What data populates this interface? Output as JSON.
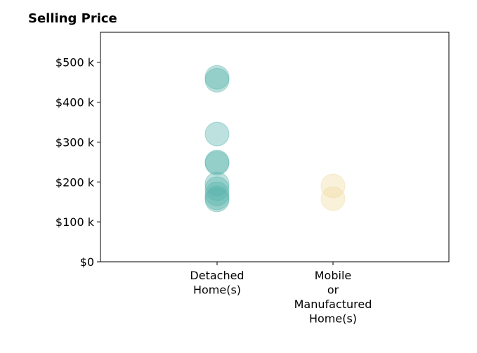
{
  "chart_data": {
    "type": "scatter",
    "title": "Selling Price",
    "xlabel": "",
    "ylabel": "",
    "ylim": [
      0,
      575000
    ],
    "y_ticks": [
      {
        "value": 0,
        "label": "$0"
      },
      {
        "value": 100000,
        "label": "$100 k"
      },
      {
        "value": 200000,
        "label": "$200 k"
      },
      {
        "value": 300000,
        "label": "$300 k"
      },
      {
        "value": 400000,
        "label": "$400 k"
      },
      {
        "value": 500000,
        "label": "$500 k"
      }
    ],
    "categories": [
      {
        "key": "detached",
        "lines": [
          "Detached",
          "Home(s)"
        ]
      },
      {
        "key": "mobile",
        "lines": [
          "Mobile",
          "or",
          "Manufactured",
          "Home(s)"
        ]
      }
    ],
    "grid": false,
    "series": [
      {
        "category": "detached",
        "color": "#5ab4ac",
        "values": [
          462000,
          455000,
          320000,
          250000,
          247000,
          195000,
          183000,
          170000,
          160000,
          155000
        ]
      },
      {
        "category": "mobile",
        "color": "#f0dba0",
        "values": [
          190000,
          158000
        ]
      }
    ]
  }
}
